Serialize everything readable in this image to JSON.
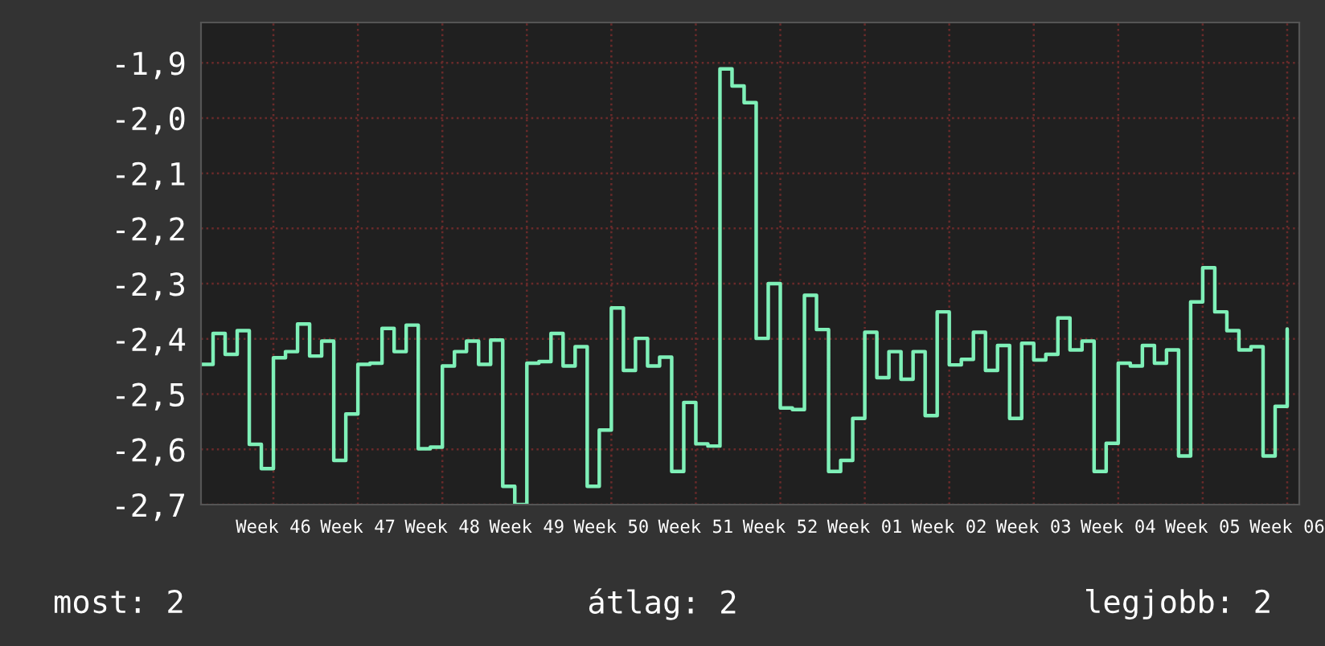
{
  "chart_data": {
    "type": "step",
    "categories": [
      null,
      null,
      null,
      null,
      null,
      null,
      "Week 46",
      null,
      null,
      null,
      null,
      null,
      null,
      "Week 47",
      null,
      null,
      null,
      null,
      null,
      null,
      "Week 48",
      null,
      null,
      null,
      null,
      null,
      null,
      "Week 49",
      null,
      null,
      null,
      null,
      null,
      null,
      "Week 50",
      null,
      null,
      null,
      null,
      null,
      null,
      "Week 51",
      null,
      null,
      null,
      null,
      null,
      null,
      "Week 52",
      null,
      null,
      null,
      null,
      null,
      null,
      "Week 01",
      null,
      null,
      null,
      null,
      null,
      null,
      "Week 02",
      null,
      null,
      null,
      null,
      null,
      null,
      "Week 03",
      null,
      null,
      null,
      null,
      null,
      null,
      "Week 04",
      null,
      null,
      null,
      null,
      null,
      null,
      "Week 05",
      null,
      null,
      null,
      null,
      null,
      null,
      "Week 06"
    ],
    "series": [
      {
        "color": "#7ff0b8",
        "values": [
          -2.446,
          -2.39,
          -2.428,
          -2.385,
          -2.591,
          -2.635,
          -2.434,
          -2.423,
          -2.373,
          -2.431,
          -2.404,
          -2.62,
          -2.536,
          -2.446,
          -2.444,
          -2.381,
          -2.423,
          -2.375,
          -2.599,
          -2.596,
          -2.449,
          -2.423,
          -2.404,
          -2.446,
          -2.402,
          -2.667,
          -2.7,
          -2.444,
          -2.441,
          -2.39,
          -2.449,
          -2.414,
          -2.667,
          -2.565,
          -2.344,
          -2.457,
          -2.399,
          -2.449,
          -2.433,
          -2.64,
          -2.515,
          -2.59,
          -2.594,
          -1.911,
          -1.942,
          -1.972,
          -2.399,
          -2.3,
          -2.525,
          -2.528,
          -2.321,
          -2.383,
          -2.64,
          -2.62,
          -2.544,
          -2.388,
          -2.47,
          -2.423,
          -2.473,
          -2.423,
          -2.539,
          -2.351,
          -2.447,
          -2.437,
          -2.388,
          -2.457,
          -2.412,
          -2.544,
          -2.408,
          -2.438,
          -2.428,
          -2.362,
          -2.42,
          -2.404,
          -2.64,
          -2.589,
          -2.444,
          -2.449,
          -2.412,
          -2.444,
          -2.42,
          -2.612,
          -2.333,
          -2.271,
          -2.351,
          -2.385,
          -2.42,
          -2.414,
          -2.612,
          -2.522,
          -2.382
        ]
      }
    ],
    "ylim": [
      -2.7,
      -1.827
    ],
    "yticks": [
      {
        "value": -2.7,
        "label": "-2,7"
      },
      {
        "value": -2.6,
        "label": "-2,6"
      },
      {
        "value": -2.5,
        "label": "-2,5"
      },
      {
        "value": -2.4,
        "label": "-2,4"
      },
      {
        "value": -2.3,
        "label": "-2,3"
      },
      {
        "value": -2.2,
        "label": "-2,2"
      },
      {
        "value": -2.1,
        "label": "-2,1"
      },
      {
        "value": -2.0,
        "label": "-2,0"
      },
      {
        "value": -1.9,
        "label": "-1,9"
      }
    ],
    "grid": true,
    "annotations": [
      "most: 2",
      "átlag: 2",
      "legjobb: 2"
    ]
  }
}
